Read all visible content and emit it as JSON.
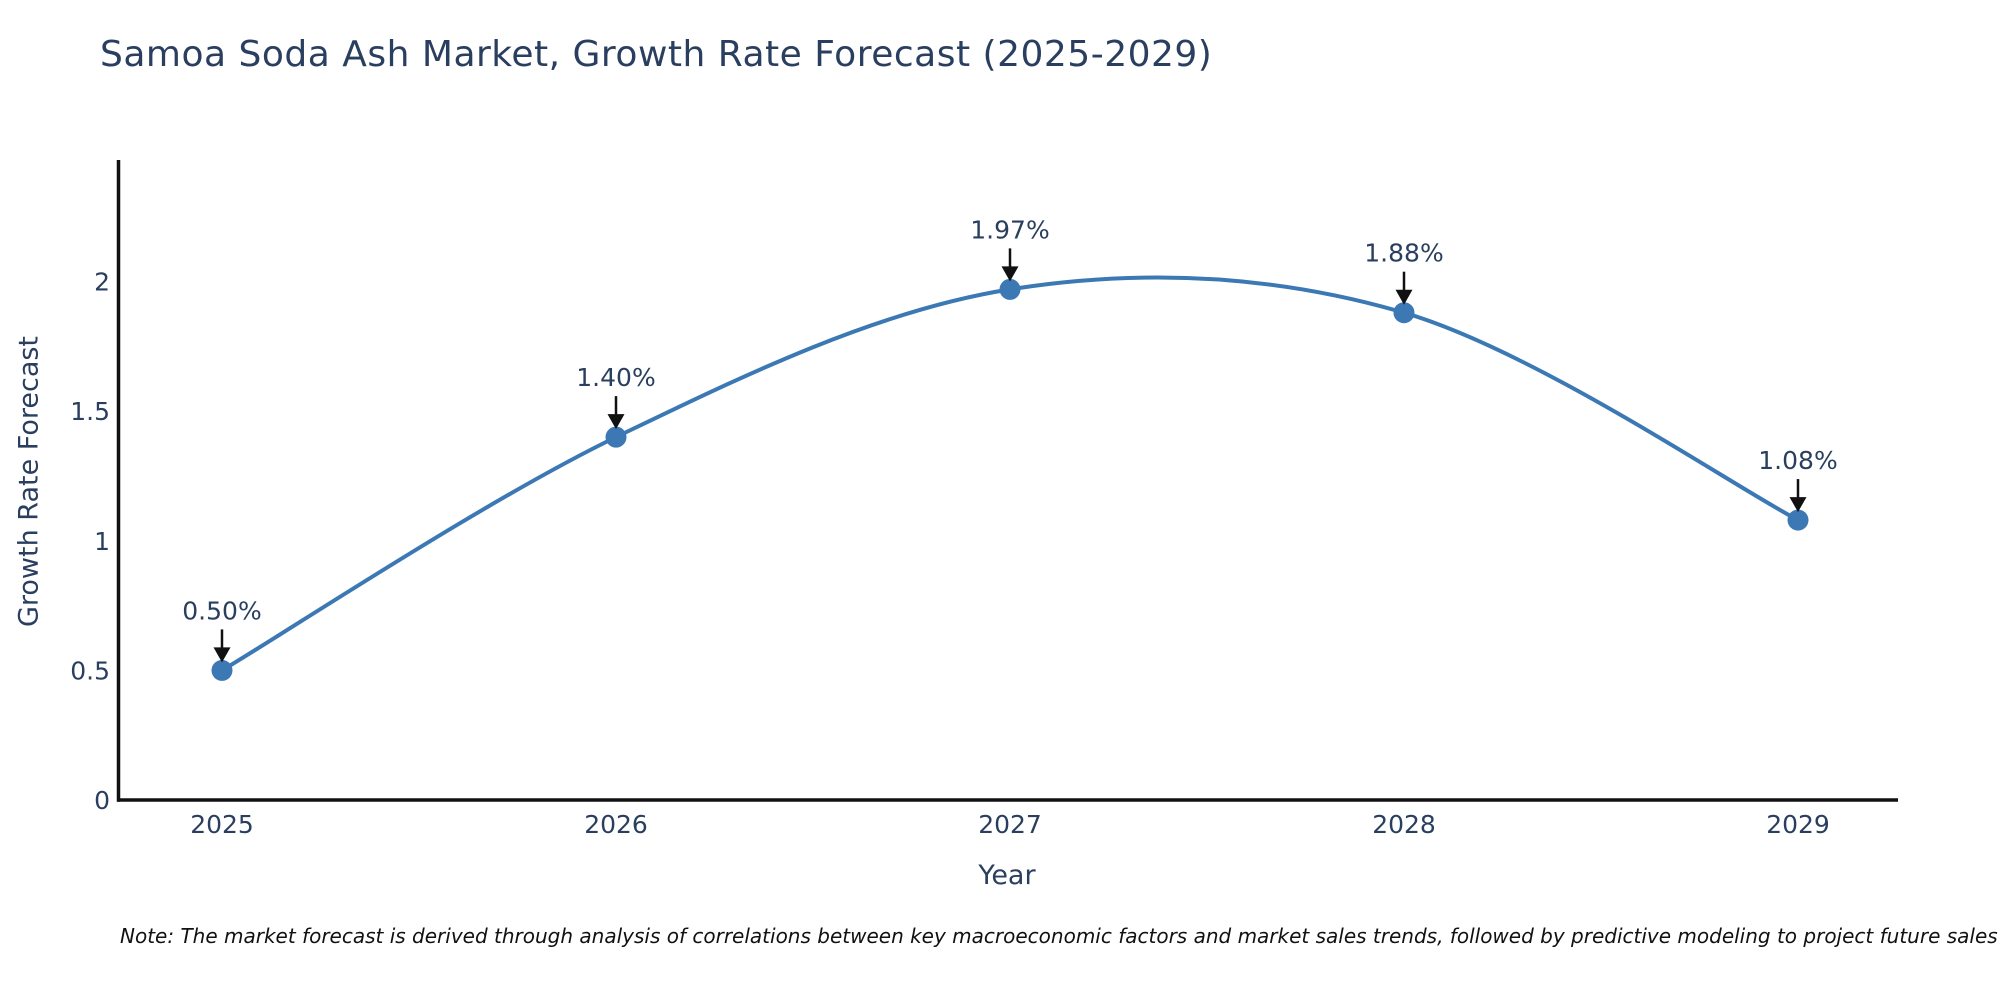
{
  "chart_data": {
    "type": "line",
    "title": "Samoa Soda Ash Market, Growth Rate Forecast (2025-2029)",
    "xlabel": "Year",
    "ylabel": "Growth Rate Forecast",
    "line_shape": "spline",
    "grid": false,
    "legend": "none",
    "categories": [
      "2025",
      "2026",
      "2027",
      "2028",
      "2029"
    ],
    "values": [
      0.5,
      1.4,
      1.97,
      1.88,
      1.08
    ],
    "point_labels": [
      "0.50%",
      "1.40%",
      "1.97%",
      "1.88%",
      "1.08%"
    ],
    "ytick_values": [
      0,
      0.5,
      1,
      1.5,
      2
    ],
    "ytick_labels": [
      "0",
      "0.5",
      "1",
      "1.5",
      "2"
    ],
    "ylim": [
      0,
      2.47
    ],
    "colors": {
      "line": "#3B78B4",
      "marker": "#3B78B4",
      "axis": "#111111",
      "title_text": "#2a3f5f",
      "tick_text": "#2a3f5f",
      "annotation_text": "#2a3f5f",
      "arrow": "#111111",
      "background": "#ffffff"
    }
  },
  "note": {
    "text": "Note: The market forecast is derived through analysis of correlations between key macroeconomic factors and market sales trends, followed by predictive modeling to project future sales"
  }
}
